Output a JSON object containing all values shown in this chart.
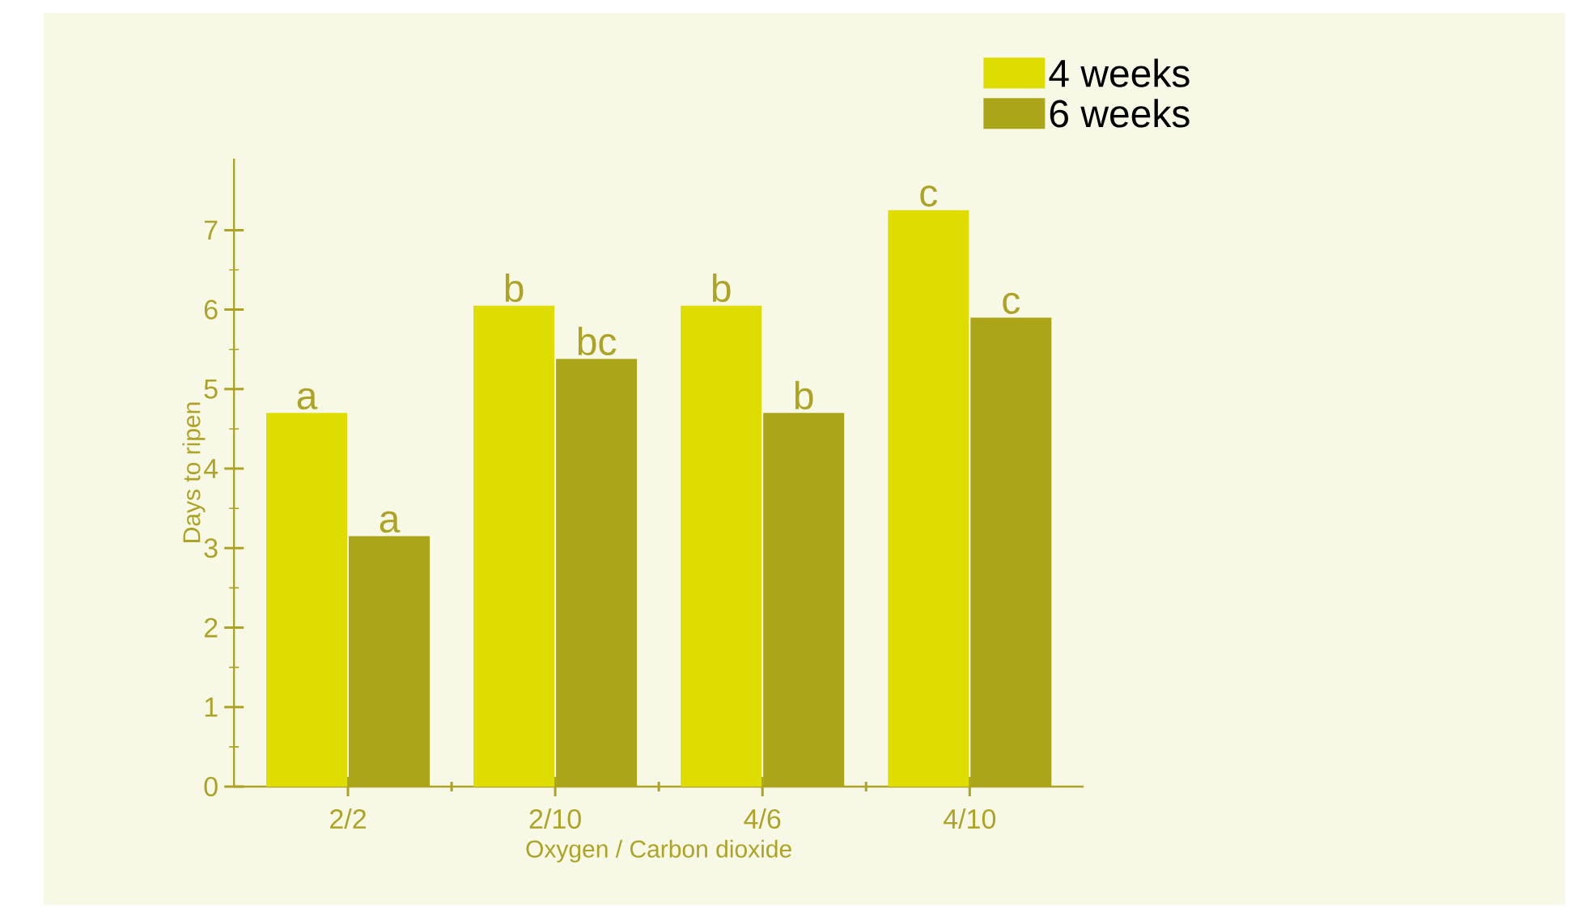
{
  "chart_data": {
    "type": "bar",
    "xlabel": "Oxygen / Carbon dioxide",
    "ylabel": "Days to ripen",
    "categories": [
      "2/2",
      "2/10",
      "4/6",
      "4/10"
    ],
    "series": [
      {
        "name": "4 weeks",
        "color": "#dedc00",
        "values": [
          4.7,
          6.05,
          6.05,
          7.25
        ],
        "value_labels": [
          "a",
          "b",
          "b",
          "c"
        ]
      },
      {
        "name": "6 weeks",
        "color": "#aba619",
        "values": [
          3.15,
          5.38,
          4.7,
          5.9
        ],
        "value_labels": [
          "a",
          "bc",
          "b",
          "c"
        ]
      }
    ],
    "ylim": [
      0,
      7.9
    ],
    "yticks": [
      0,
      1,
      2,
      3,
      4,
      5,
      6,
      7
    ],
    "legend": "top right",
    "grid": false
  }
}
